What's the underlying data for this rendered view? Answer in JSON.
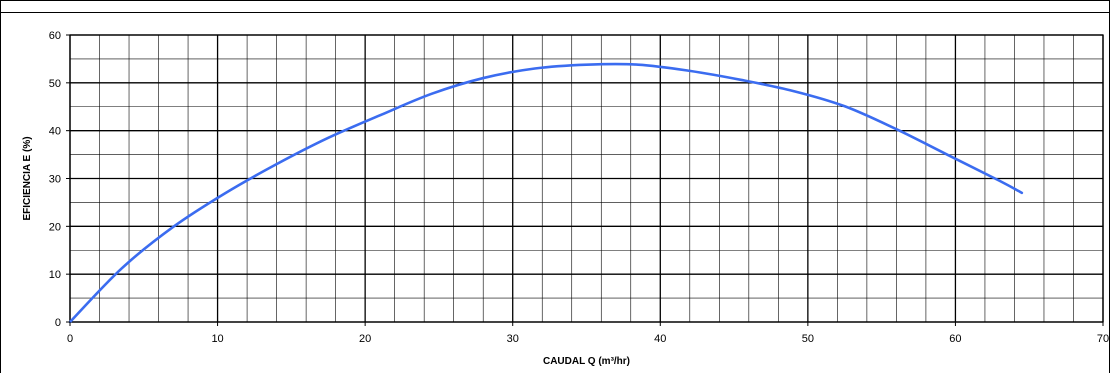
{
  "chart_data": {
    "type": "line",
    "title": "",
    "xlabel": "CAUDAL Q (m³/hr)",
    "ylabel": "EFICIENCIA E (%)",
    "xlim": [
      0,
      70
    ],
    "ylim": [
      0,
      60
    ],
    "x_major_step": 10,
    "x_minor_step": 2,
    "y_major_step": 10,
    "y_minor_step": 5,
    "x_ticks": [
      "0",
      "10",
      "20",
      "30",
      "40",
      "50",
      "60",
      "70"
    ],
    "y_ticks": [
      "0",
      "10",
      "20",
      "30",
      "40",
      "50",
      "60"
    ],
    "grid": true,
    "series": [
      {
        "color": "#3b6cf0",
        "x": [
          0,
          3.5,
          7,
          10.5,
          14,
          17.5,
          21,
          24.5,
          28,
          31.5,
          35,
          38.5,
          42,
          45.5,
          49,
          52.5,
          56,
          59.5,
          63,
          64.5
        ],
        "y": [
          0,
          11.2,
          19.9,
          26.9,
          33.0,
          38.5,
          43.2,
          47.7,
          51.0,
          53.0,
          53.8,
          53.8,
          52.5,
          50.6,
          48.3,
          45.1,
          40.3,
          34.9,
          29.5,
          27.0
        ]
      }
    ]
  }
}
